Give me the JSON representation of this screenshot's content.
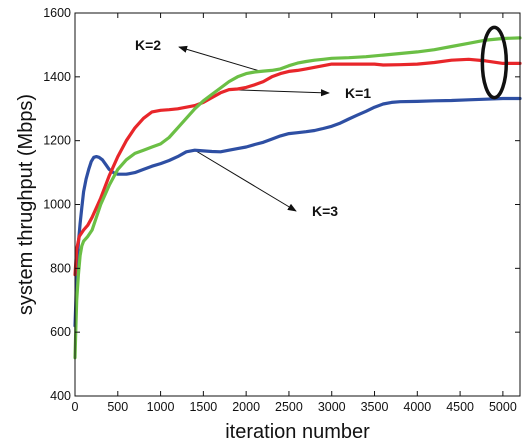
{
  "chart_data": {
    "type": "line",
    "title": "",
    "xlabel": "iteration number",
    "ylabel": "system thrughput (Mbps)",
    "xlim": [
      0,
      5200
    ],
    "ylim": [
      400,
      1600
    ],
    "xticks": [
      0,
      500,
      1000,
      1500,
      2000,
      2500,
      3000,
      3500,
      4000,
      4500,
      5000
    ],
    "yticks": [
      400,
      600,
      800,
      1000,
      1200,
      1400,
      1600
    ],
    "grid": false,
    "series": [
      {
        "name": "K=1",
        "color": "#e8262a",
        "points": [
          [
            0,
            780
          ],
          [
            20,
            860
          ],
          [
            50,
            900
          ],
          [
            100,
            920
          ],
          [
            150,
            935
          ],
          [
            200,
            960
          ],
          [
            300,
            1020
          ],
          [
            400,
            1090
          ],
          [
            500,
            1150
          ],
          [
            600,
            1200
          ],
          [
            700,
            1240
          ],
          [
            800,
            1270
          ],
          [
            900,
            1290
          ],
          [
            1000,
            1295
          ],
          [
            1100,
            1297
          ],
          [
            1200,
            1300
          ],
          [
            1300,
            1305
          ],
          [
            1400,
            1310
          ],
          [
            1500,
            1320
          ],
          [
            1600,
            1335
          ],
          [
            1700,
            1350
          ],
          [
            1800,
            1360
          ],
          [
            1900,
            1362
          ],
          [
            2000,
            1367
          ],
          [
            2100,
            1375
          ],
          [
            2200,
            1385
          ],
          [
            2300,
            1400
          ],
          [
            2400,
            1410
          ],
          [
            2500,
            1417
          ],
          [
            2600,
            1420
          ],
          [
            2700,
            1425
          ],
          [
            2800,
            1430
          ],
          [
            2900,
            1435
          ],
          [
            3000,
            1440
          ],
          [
            3500,
            1440
          ],
          [
            3600,
            1437
          ],
          [
            3800,
            1438
          ],
          [
            4000,
            1440
          ],
          [
            4200,
            1445
          ],
          [
            4400,
            1452
          ],
          [
            4600,
            1455
          ],
          [
            4800,
            1450
          ],
          [
            5000,
            1442
          ],
          [
            5200,
            1442
          ]
        ]
      },
      {
        "name": "K=2",
        "color": "#6bbf45",
        "points": [
          [
            0,
            520
          ],
          [
            10,
            620
          ],
          [
            20,
            700
          ],
          [
            40,
            780
          ],
          [
            60,
            840
          ],
          [
            80,
            870
          ],
          [
            100,
            885
          ],
          [
            150,
            900
          ],
          [
            200,
            920
          ],
          [
            300,
            1000
          ],
          [
            400,
            1060
          ],
          [
            500,
            1110
          ],
          [
            600,
            1140
          ],
          [
            700,
            1160
          ],
          [
            800,
            1170
          ],
          [
            900,
            1180
          ],
          [
            1000,
            1190
          ],
          [
            1100,
            1210
          ],
          [
            1200,
            1240
          ],
          [
            1300,
            1270
          ],
          [
            1400,
            1300
          ],
          [
            1500,
            1325
          ],
          [
            1600,
            1345
          ],
          [
            1700,
            1365
          ],
          [
            1800,
            1385
          ],
          [
            1900,
            1400
          ],
          [
            2000,
            1410
          ],
          [
            2100,
            1415
          ],
          [
            2200,
            1418
          ],
          [
            2300,
            1420
          ],
          [
            2400,
            1425
          ],
          [
            2500,
            1435
          ],
          [
            2600,
            1443
          ],
          [
            2700,
            1448
          ],
          [
            2800,
            1452
          ],
          [
            2900,
            1455
          ],
          [
            3000,
            1458
          ],
          [
            3200,
            1460
          ],
          [
            3400,
            1463
          ],
          [
            3600,
            1468
          ],
          [
            3800,
            1473
          ],
          [
            4000,
            1478
          ],
          [
            4200,
            1485
          ],
          [
            4400,
            1495
          ],
          [
            4600,
            1505
          ],
          [
            4800,
            1515
          ],
          [
            5000,
            1520
          ],
          [
            5200,
            1522
          ]
        ]
      },
      {
        "name": "K=3",
        "color": "#2e4fa3",
        "points": [
          [
            0,
            620
          ],
          [
            10,
            700
          ],
          [
            20,
            800
          ],
          [
            40,
            880
          ],
          [
            60,
            940
          ],
          [
            80,
            990
          ],
          [
            100,
            1040
          ],
          [
            130,
            1080
          ],
          [
            160,
            1110
          ],
          [
            190,
            1135
          ],
          [
            220,
            1148
          ],
          [
            250,
            1150
          ],
          [
            280,
            1148
          ],
          [
            320,
            1140
          ],
          [
            360,
            1125
          ],
          [
            400,
            1110
          ],
          [
            450,
            1100
          ],
          [
            500,
            1095
          ],
          [
            600,
            1095
          ],
          [
            700,
            1100
          ],
          [
            800,
            1110
          ],
          [
            900,
            1120
          ],
          [
            1000,
            1128
          ],
          [
            1100,
            1138
          ],
          [
            1200,
            1150
          ],
          [
            1300,
            1165
          ],
          [
            1400,
            1170
          ],
          [
            1500,
            1168
          ],
          [
            1600,
            1166
          ],
          [
            1700,
            1165
          ],
          [
            1800,
            1170
          ],
          [
            1900,
            1175
          ],
          [
            2000,
            1180
          ],
          [
            2100,
            1188
          ],
          [
            2200,
            1195
          ],
          [
            2300,
            1205
          ],
          [
            2400,
            1215
          ],
          [
            2500,
            1222
          ],
          [
            2600,
            1225
          ],
          [
            2700,
            1228
          ],
          [
            2800,
            1232
          ],
          [
            2900,
            1238
          ],
          [
            3000,
            1245
          ],
          [
            3100,
            1255
          ],
          [
            3200,
            1268
          ],
          [
            3300,
            1280
          ],
          [
            3400,
            1292
          ],
          [
            3500,
            1305
          ],
          [
            3600,
            1315
          ],
          [
            3700,
            1320
          ],
          [
            3800,
            1322
          ],
          [
            4000,
            1323
          ],
          [
            4200,
            1325
          ],
          [
            4400,
            1326
          ],
          [
            4600,
            1328
          ],
          [
            4800,
            1330
          ],
          [
            5000,
            1332
          ],
          [
            5200,
            1332
          ]
        ]
      }
    ],
    "annotations": [
      {
        "text": "K=2",
        "target_series": "K=2",
        "arrow_to": [
          2200,
          1415
        ]
      },
      {
        "text": "K=1",
        "target_series": "K=1",
        "arrow_from": [
          1800,
          1360
        ]
      },
      {
        "text": "K=3",
        "target_series": "K=3",
        "arrow_from": [
          1400,
          1170
        ]
      }
    ],
    "highlight_ellipse": {
      "center": [
        4900,
        1445
      ],
      "rx_units": 140,
      "ry_units": 110
    }
  }
}
